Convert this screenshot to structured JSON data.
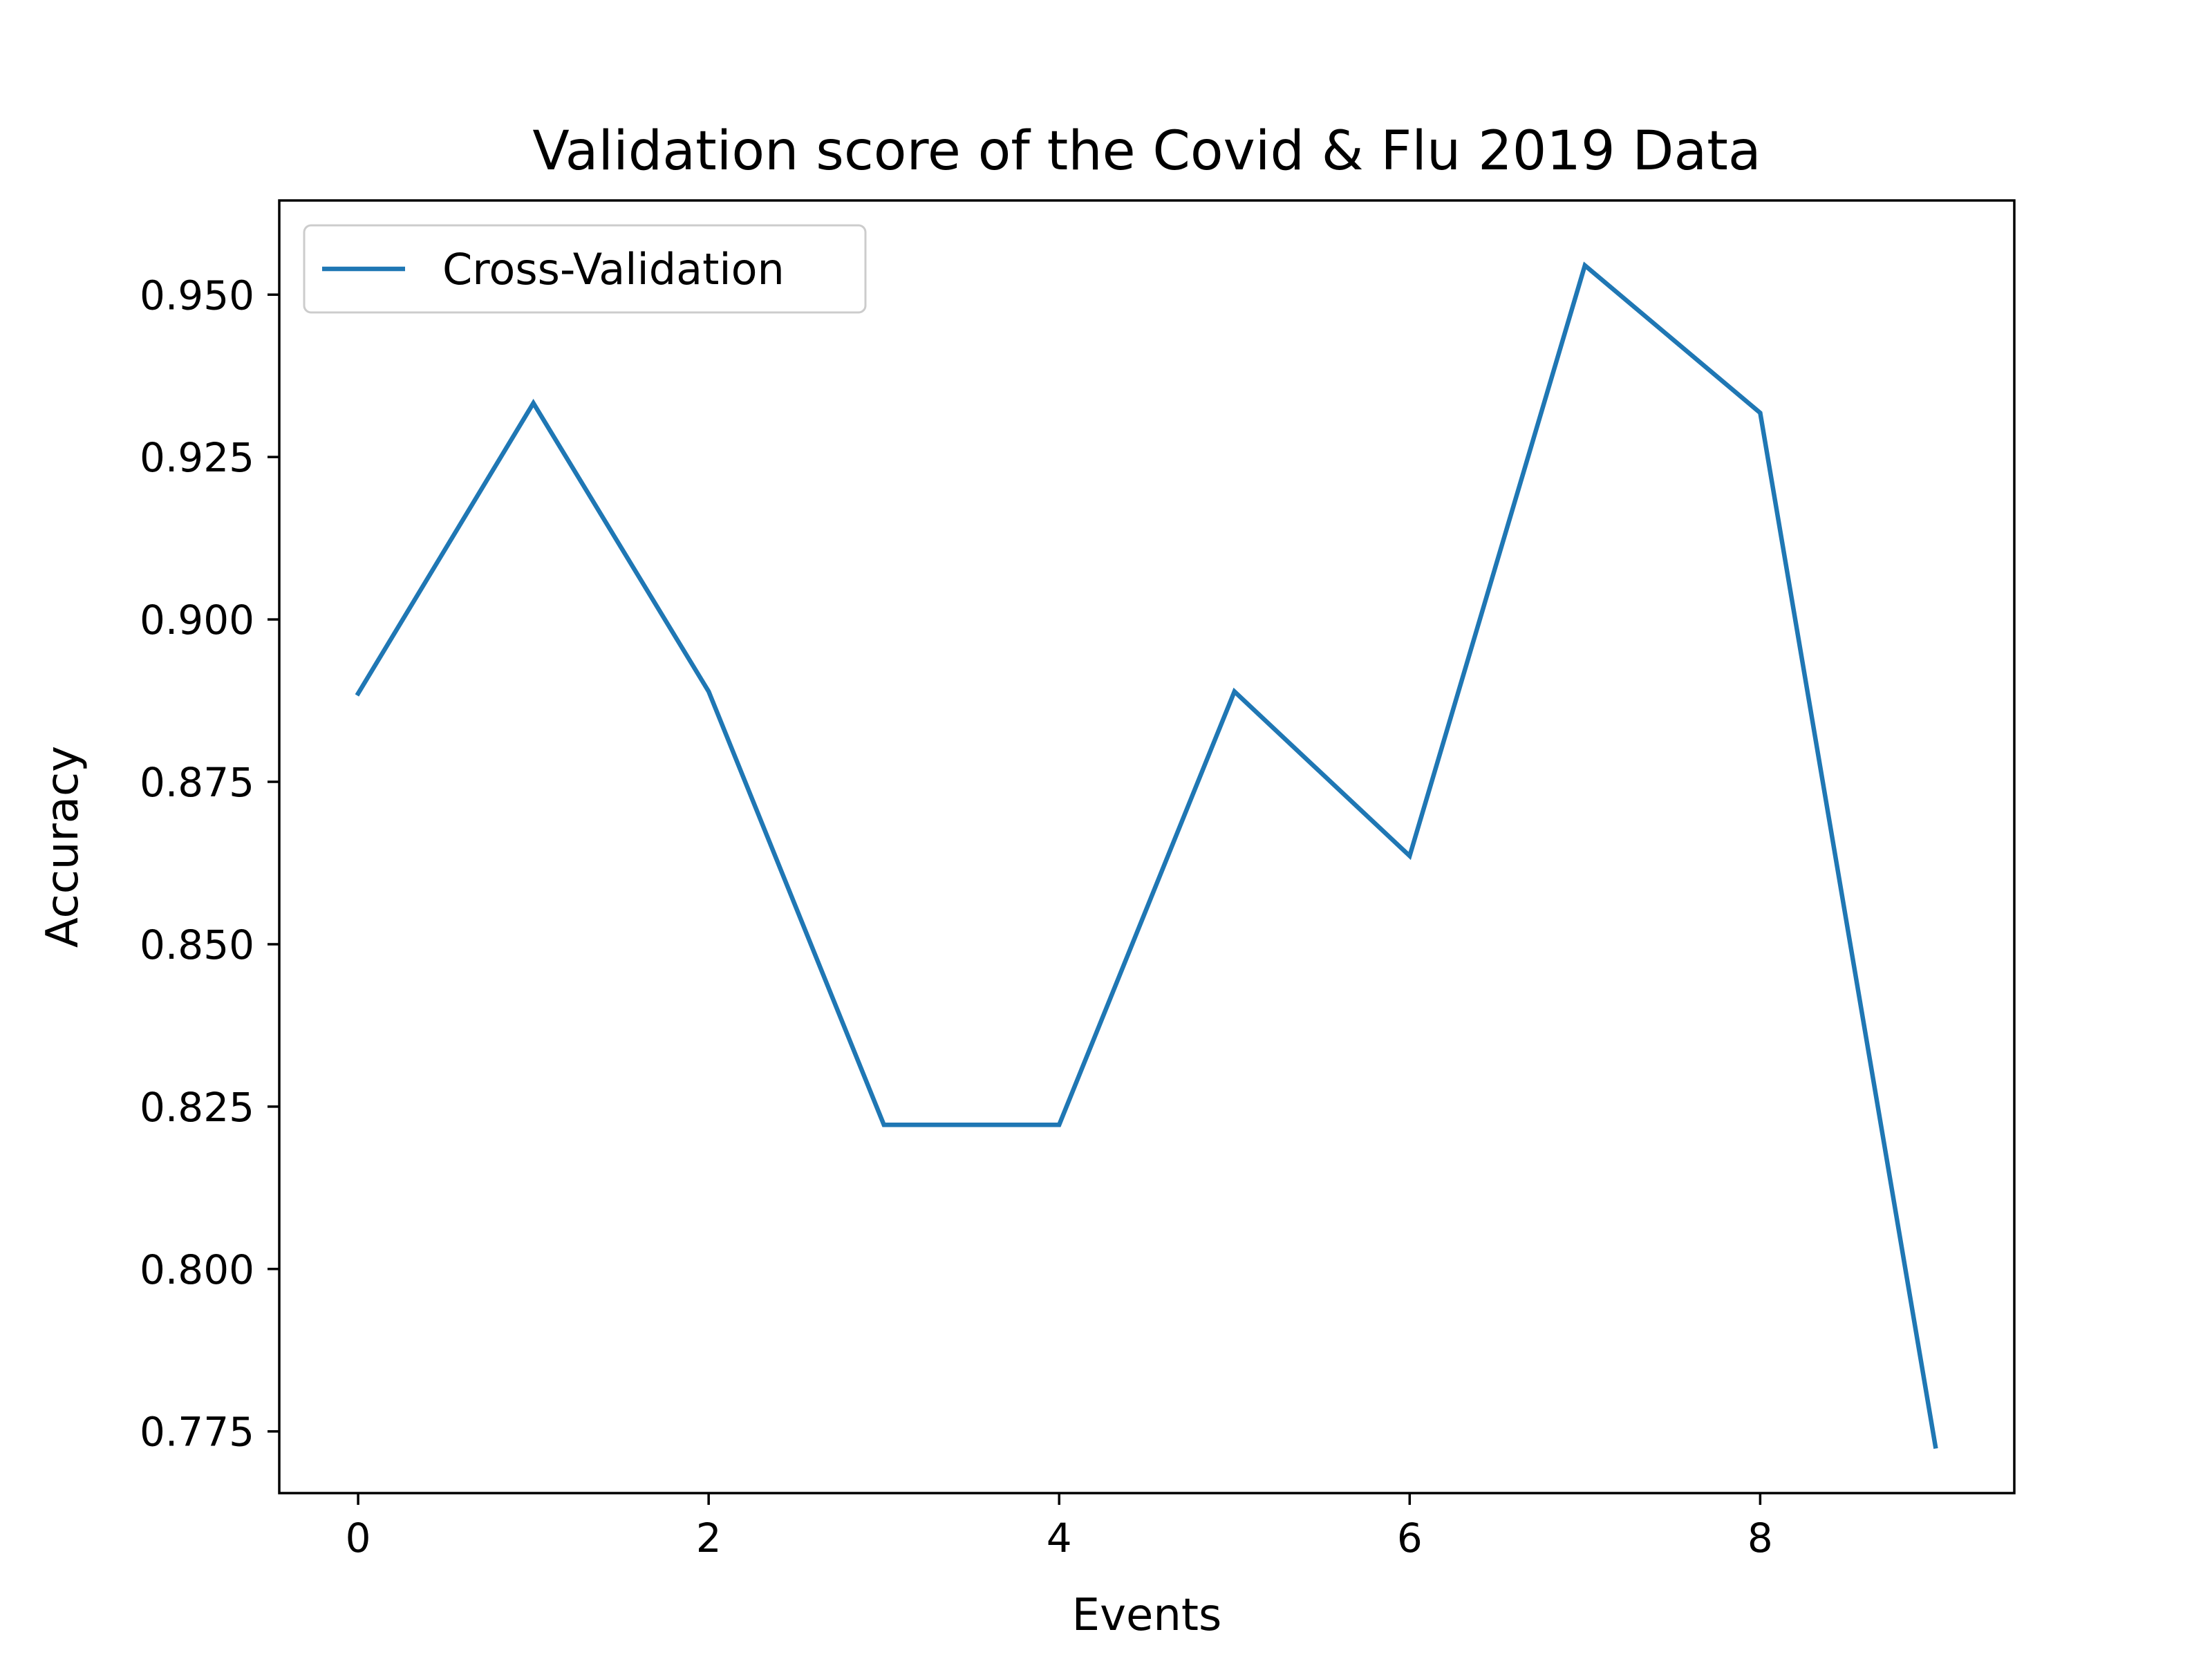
{
  "chart_data": {
    "type": "line",
    "title": "Validation score of the Covid & Flu 2019 Data",
    "xlabel": "Events",
    "ylabel": "Accuracy",
    "xlim": [
      -0.45,
      9.45
    ],
    "ylim": [
      0.7655,
      0.9645
    ],
    "xticks": [
      0,
      2,
      4,
      6,
      8
    ],
    "xtick_labels": [
      "0",
      "2",
      "4",
      "6",
      "8"
    ],
    "yticks": [
      0.775,
      0.8,
      0.825,
      0.85,
      0.875,
      0.9,
      0.925,
      0.95
    ],
    "ytick_labels": [
      "0.775",
      "0.800",
      "0.825",
      "0.850",
      "0.875",
      "0.900",
      "0.925",
      "0.950"
    ],
    "grid": false,
    "legend_position": "upper-left",
    "series": [
      {
        "name": "Cross-Validation",
        "color": "#1f77b4",
        "x": [
          0,
          1,
          2,
          3,
          4,
          5,
          6,
          7,
          8,
          9
        ],
        "y": [
          0.8886,
          0.9333,
          0.8889,
          0.8222,
          0.8222,
          0.8889,
          0.8636,
          0.9545,
          0.9318,
          0.7727
        ]
      }
    ]
  }
}
